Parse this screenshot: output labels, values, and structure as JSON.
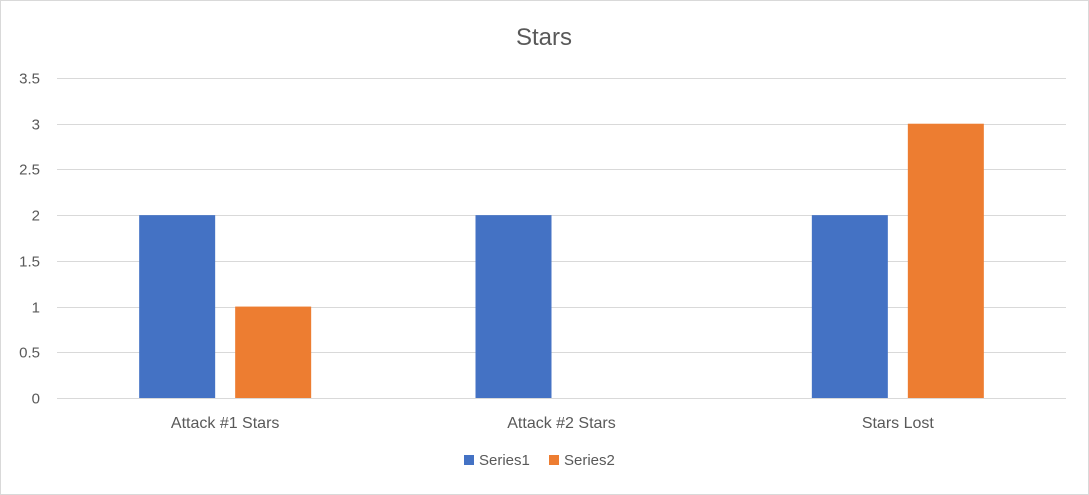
{
  "chart_data": {
    "type": "bar",
    "title": "Stars",
    "xlabel": "",
    "ylabel": "",
    "categories": [
      "Attack #1 Stars",
      "Attack #2 Stars",
      "Stars Lost"
    ],
    "series": [
      {
        "name": "Series1",
        "color": "#4472C4",
        "values": [
          2,
          2,
          2
        ]
      },
      {
        "name": "Series2",
        "color": "#ED7D31",
        "values": [
          1,
          0,
          3
        ]
      }
    ],
    "ylim": [
      0,
      3.5
    ],
    "yticks": [
      "0",
      "0.5",
      "1",
      "1.5",
      "2",
      "2.5",
      "3",
      "3.5"
    ],
    "grid": true,
    "legend_position": "bottom"
  }
}
